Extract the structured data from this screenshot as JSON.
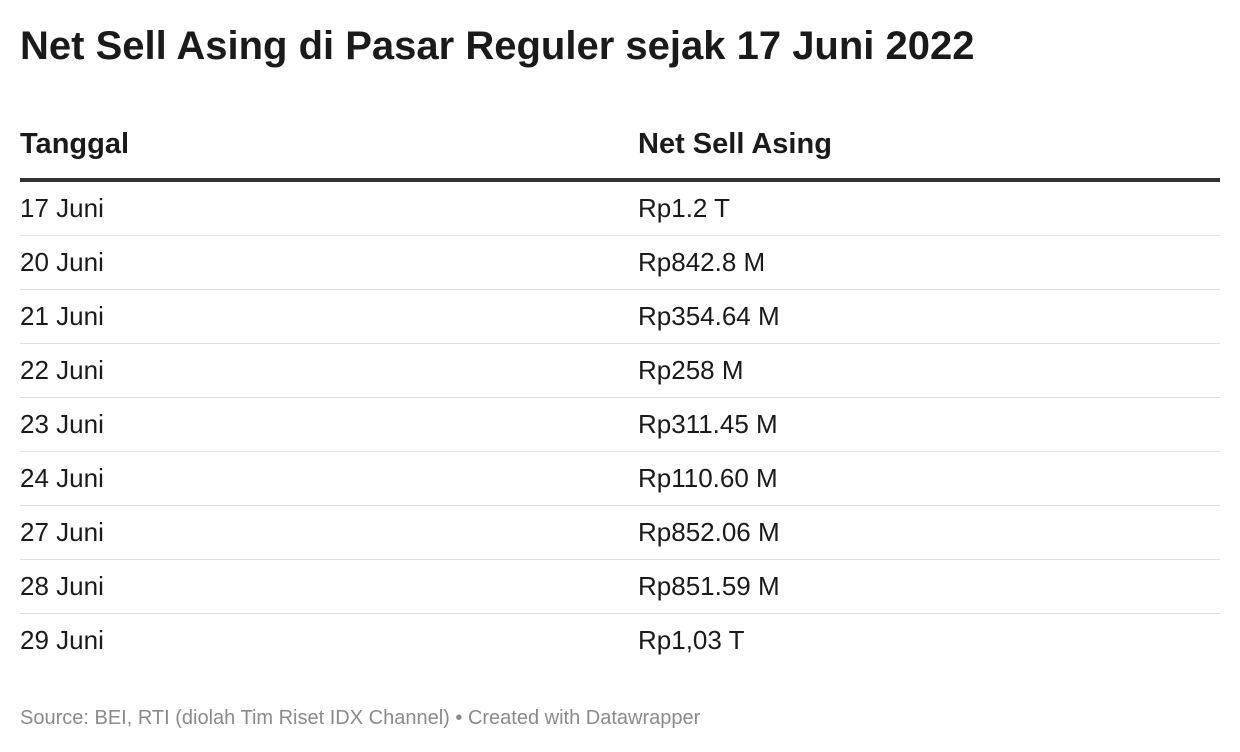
{
  "title": "Net Sell Asing di Pasar Reguler sejak 17 Juni 2022",
  "chart_data": {
    "type": "table",
    "title": "Net Sell Asing di Pasar Reguler sejak 17 Juni 2022",
    "columns": [
      "Tanggal",
      "Net Sell Asing"
    ],
    "rows": [
      [
        "17 Juni",
        "Rp1.2 T"
      ],
      [
        "20 Juni",
        "Rp842.8 M"
      ],
      [
        "21 Juni",
        "Rp354.64 M"
      ],
      [
        "22 Juni",
        "Rp258 M"
      ],
      [
        "23 Juni",
        "Rp311.45 M"
      ],
      [
        "24 Juni",
        "Rp110.60 M"
      ],
      [
        "27 Juni",
        "Rp852.06 M"
      ],
      [
        "28 Juni",
        "Rp851.59 M"
      ],
      [
        "29 Juni",
        "Rp1,03 T"
      ]
    ]
  },
  "footer": {
    "source_text": "Source: BEI, RTI (diolah Tim Riset IDX Channel)",
    "separator": "•",
    "credit_text": "Created with Datawrapper"
  },
  "colors": {
    "text": "#1a1a1a",
    "header_rule": "#333333",
    "row_rule": "#e0e0e0",
    "footer_text": "#8a8a8a"
  }
}
